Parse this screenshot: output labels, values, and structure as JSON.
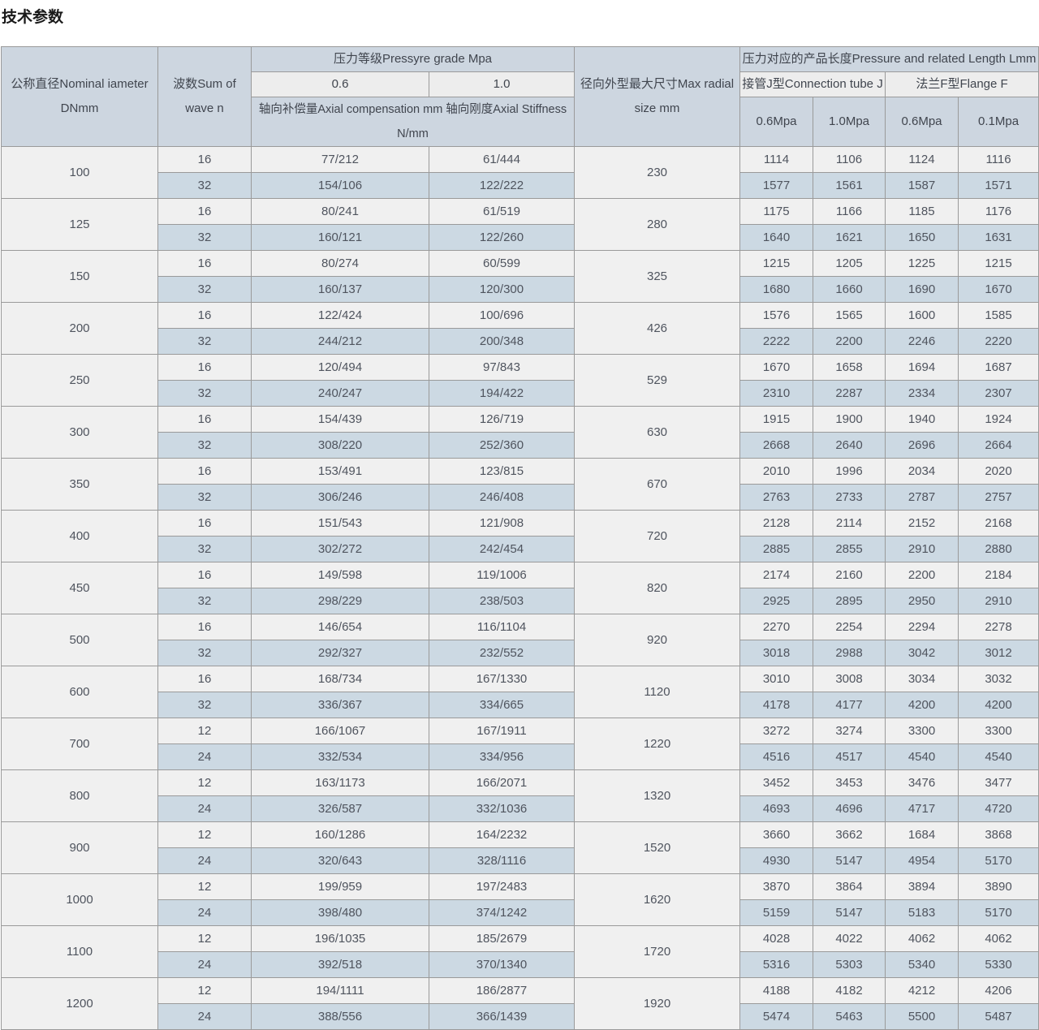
{
  "title": "技术参数",
  "table": {
    "headers": {
      "diameter": "公称直径Nominal iameter DNmm",
      "wave": "波数Sum of wave n",
      "pressure_grade": "压力等级Pressyre grade Mpa",
      "grade_06": "0.6",
      "grade_10": "1.0",
      "axial": "轴向补偿量Axial compensation mm 轴向刚度Axial Stiffness N/mm",
      "radial": "径向外型最大尺寸Max radial size mm",
      "length": "压力对应的产品长度Pressure and related Length Lmm",
      "tube_j": "接管J型Connection tube J",
      "flange_f": "法兰F型Flange F",
      "j_06": "0.6Mpa",
      "j_10": "1.0Mpa",
      "f_06": "0.6Mpa",
      "f_01": "0.1Mpa"
    },
    "rows": [
      {
        "dn": "100",
        "radial": "230",
        "waves": [
          {
            "n": "16",
            "p06": "77/212",
            "p10": "61/444",
            "j06": "1114",
            "j10": "1106",
            "f06": "1124",
            "f01": "1116"
          },
          {
            "n": "32",
            "p06": "154/106",
            "p10": "122/222",
            "j06": "1577",
            "j10": "1561",
            "f06": "1587",
            "f01": "1571"
          }
        ]
      },
      {
        "dn": "125",
        "radial": "280",
        "waves": [
          {
            "n": "16",
            "p06": "80/241",
            "p10": "61/519",
            "j06": "1175",
            "j10": "1166",
            "f06": "1185",
            "f01": "1176"
          },
          {
            "n": "32",
            "p06": "160/121",
            "p10": "122/260",
            "j06": "1640",
            "j10": "1621",
            "f06": "1650",
            "f01": "1631"
          }
        ]
      },
      {
        "dn": "150",
        "radial": "325",
        "waves": [
          {
            "n": "16",
            "p06": "80/274",
            "p10": "60/599",
            "j06": "1215",
            "j10": "1205",
            "f06": "1225",
            "f01": "1215"
          },
          {
            "n": "32",
            "p06": "160/137",
            "p10": "120/300",
            "j06": "1680",
            "j10": "1660",
            "f06": "1690",
            "f01": "1670"
          }
        ]
      },
      {
        "dn": "200",
        "radial": "426",
        "waves": [
          {
            "n": "16",
            "p06": "122/424",
            "p10": "100/696",
            "j06": "1576",
            "j10": "1565",
            "f06": "1600",
            "f01": "1585"
          },
          {
            "n": "32",
            "p06": "244/212",
            "p10": "200/348",
            "j06": "2222",
            "j10": "2200",
            "f06": "2246",
            "f01": "2220"
          }
        ]
      },
      {
        "dn": "250",
        "radial": "529",
        "waves": [
          {
            "n": "16",
            "p06": "120/494",
            "p10": "97/843",
            "j06": "1670",
            "j10": "1658",
            "f06": "1694",
            "f01": "1687"
          },
          {
            "n": "32",
            "p06": "240/247",
            "p10": "194/422",
            "j06": "2310",
            "j10": "2287",
            "f06": "2334",
            "f01": "2307"
          }
        ]
      },
      {
        "dn": "300",
        "radial": "630",
        "waves": [
          {
            "n": "16",
            "p06": "154/439",
            "p10": "126/719",
            "j06": "1915",
            "j10": "1900",
            "f06": "1940",
            "f01": "1924"
          },
          {
            "n": "32",
            "p06": "308/220",
            "p10": "252/360",
            "j06": "2668",
            "j10": "2640",
            "f06": "2696",
            "f01": "2664"
          }
        ]
      },
      {
        "dn": "350",
        "radial": "670",
        "waves": [
          {
            "n": "16",
            "p06": "153/491",
            "p10": "123/815",
            "j06": "2010",
            "j10": "1996",
            "f06": "2034",
            "f01": "2020"
          },
          {
            "n": "32",
            "p06": "306/246",
            "p10": "246/408",
            "j06": "2763",
            "j10": "2733",
            "f06": "2787",
            "f01": "2757"
          }
        ]
      },
      {
        "dn": "400",
        "radial": "720",
        "waves": [
          {
            "n": "16",
            "p06": "151/543",
            "p10": "121/908",
            "j06": "2128",
            "j10": "2114",
            "f06": "2152",
            "f01": "2168"
          },
          {
            "n": "32",
            "p06": "302/272",
            "p10": "242/454",
            "j06": "2885",
            "j10": "2855",
            "f06": "2910",
            "f01": "2880"
          }
        ]
      },
      {
        "dn": "450",
        "radial": "820",
        "waves": [
          {
            "n": "16",
            "p06": "149/598",
            "p10": "119/1006",
            "j06": "2174",
            "j10": "2160",
            "f06": "2200",
            "f01": "2184"
          },
          {
            "n": "32",
            "p06": "298/229",
            "p10": "238/503",
            "j06": "2925",
            "j10": "2895",
            "f06": "2950",
            "f01": "2910"
          }
        ]
      },
      {
        "dn": "500",
        "radial": "920",
        "waves": [
          {
            "n": "16",
            "p06": "146/654",
            "p10": "116/1104",
            "j06": "2270",
            "j10": "2254",
            "f06": "2294",
            "f01": "2278"
          },
          {
            "n": "32",
            "p06": "292/327",
            "p10": "232/552",
            "j06": "3018",
            "j10": "2988",
            "f06": "3042",
            "f01": "3012"
          }
        ]
      },
      {
        "dn": "600",
        "radial": "1120",
        "waves": [
          {
            "n": "16",
            "p06": "168/734",
            "p10": "167/1330",
            "j06": "3010",
            "j10": "3008",
            "f06": "3034",
            "f01": "3032"
          },
          {
            "n": "32",
            "p06": "336/367",
            "p10": "334/665",
            "j06": "4178",
            "j10": "4177",
            "f06": "4200",
            "f01": "4200"
          }
        ]
      },
      {
        "dn": "700",
        "radial": "1220",
        "waves": [
          {
            "n": "12",
            "p06": "166/1067",
            "p10": "167/1911",
            "j06": "3272",
            "j10": "3274",
            "f06": "3300",
            "f01": "3300"
          },
          {
            "n": "24",
            "p06": "332/534",
            "p10": "334/956",
            "j06": "4516",
            "j10": "4517",
            "f06": "4540",
            "f01": "4540"
          }
        ]
      },
      {
        "dn": "800",
        "radial": "1320",
        "waves": [
          {
            "n": "12",
            "p06": "163/1173",
            "p10": "166/2071",
            "j06": "3452",
            "j10": "3453",
            "f06": "3476",
            "f01": "3477"
          },
          {
            "n": "24",
            "p06": "326/587",
            "p10": "332/1036",
            "j06": "4693",
            "j10": "4696",
            "f06": "4717",
            "f01": "4720"
          }
        ]
      },
      {
        "dn": "900",
        "radial": "1520",
        "waves": [
          {
            "n": "12",
            "p06": "160/1286",
            "p10": "164/2232",
            "j06": "3660",
            "j10": "3662",
            "f06": "1684",
            "f01": "3868"
          },
          {
            "n": "24",
            "p06": "320/643",
            "p10": "328/1116",
            "j06": "4930",
            "j10": "5147",
            "f06": "4954",
            "f01": "5170"
          }
        ]
      },
      {
        "dn": "1000",
        "radial": "1620",
        "waves": [
          {
            "n": "12",
            "p06": "199/959",
            "p10": "197/2483",
            "j06": "3870",
            "j10": "3864",
            "f06": "3894",
            "f01": "3890"
          },
          {
            "n": "24",
            "p06": "398/480",
            "p10": "374/1242",
            "j06": "5159",
            "j10": "5147",
            "f06": "5183",
            "f01": "5170"
          }
        ]
      },
      {
        "dn": "1100",
        "radial": "1720",
        "waves": [
          {
            "n": "12",
            "p06": "196/1035",
            "p10": "185/2679",
            "j06": "4028",
            "j10": "4022",
            "f06": "4062",
            "f01": "4062"
          },
          {
            "n": "24",
            "p06": "392/518",
            "p10": "370/1340",
            "j06": "5316",
            "j10": "5303",
            "f06": "5340",
            "f01": "5330"
          }
        ]
      },
      {
        "dn": "1200",
        "radial": "1920",
        "waves": [
          {
            "n": "12",
            "p06": "194/1111",
            "p10": "186/2877",
            "j06": "4188",
            "j10": "4182",
            "f06": "4212",
            "f01": "4206"
          },
          {
            "n": "24",
            "p06": "388/556",
            "p10": "366/1439",
            "j06": "5474",
            "j10": "5463",
            "f06": "5500",
            "f01": "5487"
          }
        ]
      }
    ]
  }
}
